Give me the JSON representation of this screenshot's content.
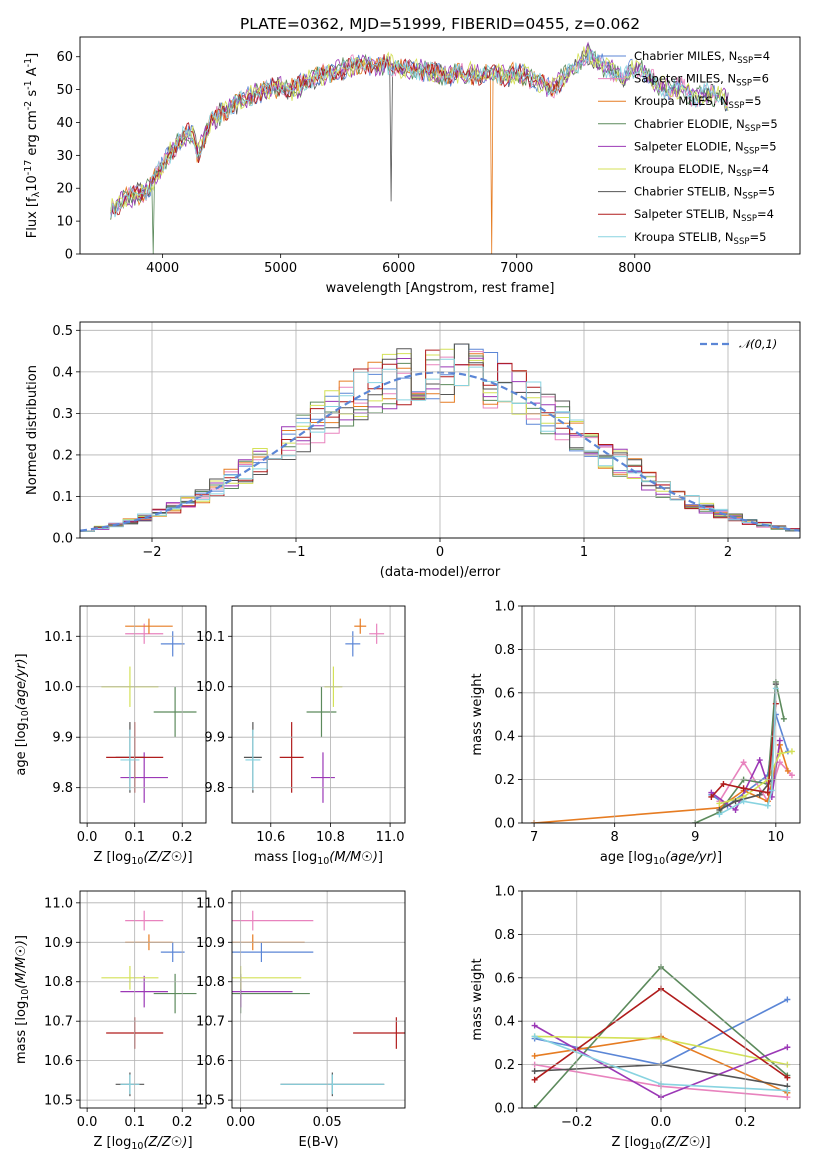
{
  "title": "PLATE=0362, MJD=51999, FIBERID=0455, z=0.062",
  "models": [
    {
      "name": "Chabrier MILES",
      "nssp": "4",
      "color": "#5b86d6",
      "z": 0.18,
      "zerr": 0.025,
      "age": 10.085,
      "ageerr": 0.025,
      "mass": 10.875,
      "masserr": 0.025,
      "ebv": 0.012,
      "ebverr": 0.03
    },
    {
      "name": "Salpeter MILES",
      "nssp": "6",
      "color": "#e883be",
      "z": 0.12,
      "zerr": 0.04,
      "age": 10.105,
      "ageerr": 0.02,
      "mass": 10.955,
      "masserr": 0.025,
      "ebv": 0.007,
      "ebverr": 0.035
    },
    {
      "name": "Kroupa MILES",
      "nssp": "5",
      "color": "#e67c22",
      "z": 0.13,
      "zerr": 0.05,
      "age": 10.12,
      "ageerr": 0.015,
      "mass": 10.9,
      "masserr": 0.02,
      "ebv": 0.007,
      "ebverr": 0.03
    },
    {
      "name": "Chabrier ELODIE",
      "nssp": "5",
      "color": "#5c8a5c",
      "z": 0.185,
      "zerr": 0.045,
      "age": 9.95,
      "ageerr": 0.05,
      "mass": 10.77,
      "masserr": 0.05,
      "ebv": 0.0,
      "ebverr": 0.04
    },
    {
      "name": "Salpeter ELODIE",
      "nssp": "5",
      "color": "#9b38b6",
      "z": 0.12,
      "zerr": 0.05,
      "age": 9.82,
      "ageerr": 0.05,
      "mass": 10.775,
      "masserr": 0.04,
      "ebv": 0.0,
      "ebverr": 0.03
    },
    {
      "name": "Kroupa ELODIE",
      "nssp": "4",
      "color": "#d4e157",
      "z": 0.09,
      "zerr": 0.06,
      "age": 10.0,
      "ageerr": 0.04,
      "mass": 10.81,
      "masserr": 0.03,
      "ebv": 0.0,
      "ebverr": 0.035
    },
    {
      "name": "Chabrier STELIB",
      "nssp": "5",
      "color": "#555555",
      "z": 0.09,
      "zerr": 0.03,
      "age": 9.86,
      "ageerr": 0.07,
      "mass": 10.54,
      "masserr": 0.03,
      "ebv": 0.053,
      "ebverr": 0.03
    },
    {
      "name": "Salpeter STELIB",
      "nssp": "4",
      "color": "#b01c1c",
      "z": 0.1,
      "zerr": 0.06,
      "age": 9.86,
      "ageerr": 0.07,
      "mass": 10.67,
      "masserr": 0.04,
      "ebv": 0.09,
      "ebverr": 0.025
    },
    {
      "name": "Kroupa STELIB",
      "nssp": "5",
      "color": "#88d3e0",
      "z": 0.09,
      "zerr": 0.02,
      "age": 9.855,
      "ageerr": 0.06,
      "mass": 10.54,
      "masserr": 0.025,
      "ebv": 0.053,
      "ebverr": 0.03
    }
  ],
  "chart_data": [
    {
      "id": "spectrum",
      "type": "line",
      "title": "PLATE=0362, MJD=51999, FIBERID=0455, z=0.062",
      "xlabel": "wavelength [Angstrom, rest frame]",
      "ylabel": "Flux [f_λ10^-17 erg cm^-2 s^-1 A^-1]",
      "xlim": [
        3300,
        9400
      ],
      "ylim": [
        0,
        66
      ],
      "xticks": [
        4000,
        5000,
        6000,
        7000,
        8000
      ],
      "yticks": [
        0,
        10,
        20,
        30,
        40,
        50,
        60
      ],
      "x": [
        3560,
        3700,
        3850,
        3950,
        4050,
        4150,
        4250,
        4300,
        4400,
        4500,
        4600,
        4700,
        4800,
        4900,
        5000,
        5100,
        5200,
        5300,
        5400,
        5500,
        5600,
        5700,
        5800,
        5900,
        6000,
        6100,
        6200,
        6300,
        6400,
        6500,
        6600,
        6700,
        6800,
        6900,
        7000,
        7100,
        7200,
        7300,
        7400,
        7500,
        7600,
        7700,
        7800,
        7900,
        8000,
        8100,
        8200,
        8300,
        8400,
        8500,
        8600,
        8700,
        8800
      ],
      "y": [
        14,
        17,
        19,
        24,
        30,
        35,
        37,
        30,
        40,
        43,
        45,
        47,
        49,
        50,
        51,
        50,
        52,
        54,
        55,
        56,
        57,
        58,
        57,
        58,
        57,
        56,
        56,
        55,
        54,
        55,
        55,
        54,
        55,
        54,
        55,
        54,
        52,
        50,
        54,
        57,
        61,
        58,
        56,
        53,
        57,
        55,
        51,
        50,
        51,
        47,
        49,
        48,
        46
      ],
      "grid": false,
      "legend": "top-right"
    },
    {
      "id": "residuals",
      "type": "line",
      "xlabel": "(data-model)/error",
      "ylabel": "Normed distribution",
      "xlim": [
        -2.5,
        2.5
      ],
      "ylim": [
        0,
        0.52
      ],
      "xticks": [
        -2,
        -1,
        0,
        1,
        2
      ],
      "yticks": [
        0.0,
        0.1,
        0.2,
        0.3,
        0.4,
        0.5
      ],
      "reference": {
        "name": "𝒩(0,1)",
        "mean": 0,
        "sigma": 1
      },
      "grid": true,
      "legend": "top-right"
    },
    {
      "id": "age-vs-z",
      "type": "scatter",
      "xlabel": "Z [log10(Z/Z☉)]",
      "ylabel": "age  [log10(age/yr)]",
      "xlim": [
        -0.015,
        0.25
      ],
      "ylim": [
        9.73,
        10.16
      ],
      "xticks": [
        0.0,
        0.1,
        0.2
      ],
      "yticks": [
        9.8,
        9.9,
        10.0,
        10.1
      ],
      "grid": true
    },
    {
      "id": "age-vs-mass",
      "type": "scatter",
      "xlabel": "mass [log10(M/M☉)]",
      "ylabel": "",
      "xlim": [
        10.47,
        11.05
      ],
      "ylim": [
        9.73,
        10.16
      ],
      "xticks": [
        10.6,
        10.8,
        11.0
      ],
      "yticks": [
        9.8,
        9.9,
        10.0,
        10.1
      ],
      "grid": true
    },
    {
      "id": "weight-vs-age",
      "type": "line",
      "xlabel": "age  [log10(age/yr)]",
      "ylabel": "mass weight",
      "xlim": [
        6.85,
        10.3
      ],
      "ylim": [
        0,
        1
      ],
      "xticks": [
        7,
        8,
        9,
        10
      ],
      "yticks": [
        0.0,
        0.2,
        0.4,
        0.6,
        0.8,
        1.0
      ],
      "grid": true,
      "series": [
        {
          "x": [
            9.2,
            9.4,
            9.9,
            10.0,
            10.15
          ],
          "y": [
            0.13,
            0.08,
            0.22,
            0.5,
            0.33
          ]
        },
        {
          "x": [
            9.3,
            9.6,
            9.9,
            10.05,
            10.2
          ],
          "y": [
            0.1,
            0.28,
            0.1,
            0.28,
            0.22
          ]
        },
        {
          "x": [
            7.0,
            9.3,
            9.6,
            9.9,
            10.05,
            10.15
          ],
          "y": [
            0.0,
            0.07,
            0.15,
            0.1,
            0.36,
            0.24
          ]
        },
        {
          "x": [
            9.0,
            9.3,
            9.6,
            9.9,
            10.0,
            10.1
          ],
          "y": [
            0.0,
            0.05,
            0.2,
            0.18,
            0.65,
            0.48
          ]
        },
        {
          "x": [
            9.2,
            9.5,
            9.8,
            9.95,
            10.05
          ],
          "y": [
            0.14,
            0.06,
            0.29,
            0.12,
            0.38
          ]
        },
        {
          "x": [
            9.3,
            9.6,
            9.9,
            10.05,
            10.2
          ],
          "y": [
            0.09,
            0.12,
            0.2,
            0.32,
            0.33
          ]
        },
        {
          "x": [
            9.3,
            9.5,
            9.8,
            9.95,
            10.0
          ],
          "y": [
            0.06,
            0.1,
            0.13,
            0.2,
            0.64
          ]
        },
        {
          "x": [
            9.2,
            9.35,
            9.6,
            9.9,
            10.0
          ],
          "y": [
            0.12,
            0.18,
            0.16,
            0.14,
            0.55
          ]
        },
        {
          "x": [
            9.3,
            9.6,
            9.9,
            9.95,
            10.0
          ],
          "y": [
            0.04,
            0.1,
            0.08,
            0.15,
            0.62
          ]
        }
      ]
    },
    {
      "id": "mass-vs-z",
      "type": "scatter",
      "xlabel": "Z [log10(Z/Z☉)]",
      "ylabel": "mass [log10(M/M☉)]",
      "xlim": [
        -0.015,
        0.25
      ],
      "ylim": [
        10.48,
        11.03
      ],
      "xticks": [
        0.0,
        0.1,
        0.2
      ],
      "yticks": [
        10.5,
        10.6,
        10.7,
        10.8,
        10.9,
        11.0
      ],
      "grid": true
    },
    {
      "id": "mass-vs-ebv",
      "type": "scatter",
      "xlabel": "E(B-V)",
      "ylabel": "",
      "xlim": [
        -0.005,
        0.095
      ],
      "ylim": [
        10.48,
        11.03
      ],
      "xticks": [
        0.0,
        0.05
      ],
      "yticks": [
        10.5,
        10.6,
        10.7,
        10.8,
        10.9,
        11.0
      ],
      "grid": true
    },
    {
      "id": "weight-vs-z",
      "type": "line",
      "xlabel": "Z [log10(Z/Z☉)]",
      "ylabel": "mass weight",
      "xlim": [
        -0.33,
        0.33
      ],
      "ylim": [
        0,
        1
      ],
      "xticks": [
        -0.2,
        0.0,
        0.2
      ],
      "yticks": [
        0.0,
        0.2,
        0.4,
        0.6,
        0.8,
        1.0
      ],
      "grid": true,
      "series": [
        {
          "x": [
            -0.3,
            0.0,
            0.3
          ],
          "y": [
            0.32,
            0.2,
            0.5
          ]
        },
        {
          "x": [
            -0.3,
            0.0,
            0.3
          ],
          "y": [
            0.2,
            0.1,
            0.05
          ]
        },
        {
          "x": [
            -0.3,
            0.0,
            0.3
          ],
          "y": [
            0.24,
            0.33,
            0.07
          ]
        },
        {
          "x": [
            -0.3,
            0.0,
            0.3
          ],
          "y": [
            0.0,
            0.65,
            0.15
          ]
        },
        {
          "x": [
            -0.3,
            0.0,
            0.3
          ],
          "y": [
            0.38,
            0.05,
            0.28
          ]
        },
        {
          "x": [
            -0.3,
            0.0,
            0.3
          ],
          "y": [
            0.33,
            0.32,
            0.2
          ]
        },
        {
          "x": [
            -0.3,
            0.0,
            0.3
          ],
          "y": [
            0.17,
            0.2,
            0.1
          ]
        },
        {
          "x": [
            -0.3,
            0.0,
            0.3
          ],
          "y": [
            0.13,
            0.55,
            0.14
          ]
        },
        {
          "x": [
            -0.3,
            0.0,
            0.3
          ],
          "y": [
            0.33,
            0.11,
            0.08
          ]
        }
      ]
    }
  ]
}
